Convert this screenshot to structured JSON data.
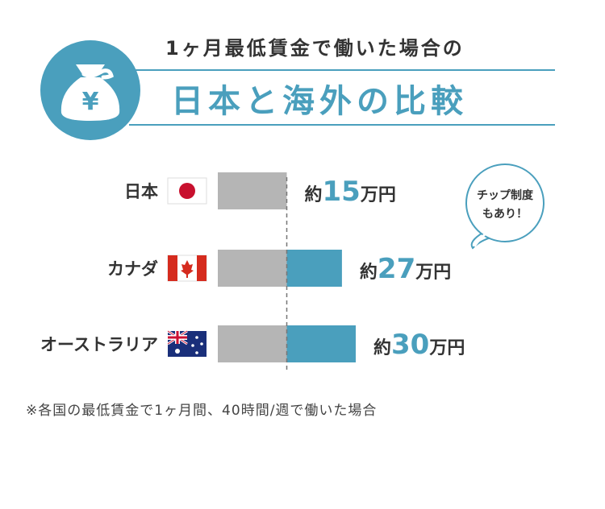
{
  "header": {
    "subtitle": "1ヶ月最低賃金で働いた場合の",
    "title": "日本と海外の比較",
    "icon_symbol": "¥"
  },
  "chart_data": {
    "type": "bar",
    "orientation": "horizontal",
    "categories": [
      "日本",
      "カナダ",
      "オーストラリア"
    ],
    "values": [
      15,
      27,
      30
    ],
    "value_prefix": "約",
    "value_unit": "万円",
    "baseline_note": "grey segment = Japan level (15); blue segment = amount above Japan",
    "colors": {
      "base": "#b5b5b5",
      "excess": "#4a9fbd",
      "value_number": "#4a9fbd"
    },
    "flags": [
      "japan-flag",
      "canada-flag",
      "australia-flag"
    ],
    "annotation": [
      "チップ制度",
      "もあり！"
    ]
  },
  "footnote": "※各国の最低賃金で1ヶ月間、40時間/週で働いた場合"
}
